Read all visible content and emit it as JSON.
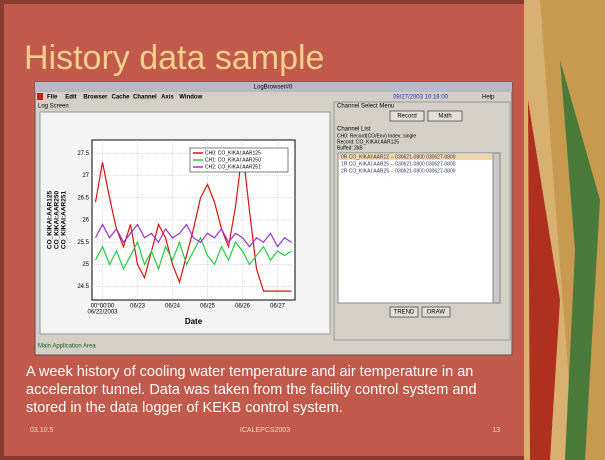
{
  "title": "History data sample",
  "window": {
    "title": "LogBrowser#0",
    "menu": [
      "File",
      "Edit",
      "Browser",
      "Cache",
      "Channel",
      "Axis",
      "Window"
    ],
    "clock": "09/27/2003 10:16:00",
    "help": "Help",
    "left_panel": "Log Screen",
    "status": "Main Application Area"
  },
  "channel_panel": {
    "heading": "Channel Select Menu",
    "buttons": [
      "Record",
      "Math"
    ],
    "list_heading": "Channel List",
    "info": [
      "CH0: Record(CO/Env) Index: single",
      "Record: CO_KIKAI:AAR125",
      "Buffed: 2kB"
    ],
    "list": [
      "0R  CO_KIKAI:AAR12 -- 030621-0800 030627-0800",
      "1R  CO_KIKAI:AAR25 -- 030621-0800 030627-0800",
      "2R  CO_KIKAI:AAR25 -- 030621-0800 030627-0800"
    ],
    "actions": [
      "TREND",
      "DRAW"
    ]
  },
  "chart_data": {
    "type": "line",
    "xlabel": "Date",
    "ylabel": [
      "CO_KIKAI:AAR125",
      "CO_KIKAI:AAR250",
      "CO_KIKAI:AAR251"
    ],
    "x": [
      -0.2,
      0,
      0.2,
      0.4,
      0.6,
      0.8,
      1,
      1.2,
      1.4,
      1.6,
      1.8,
      2,
      2.2,
      2.4,
      2.6,
      2.8,
      3,
      3.2,
      3.4,
      3.6,
      3.8,
      4,
      4.2,
      4.4,
      4.6,
      4.8,
      5,
      5.2,
      5.4
    ],
    "xlim": [
      -0.3,
      5.5
    ],
    "xticks": [
      {
        "value": 0,
        "label": "06/22/2003"
      },
      {
        "value": 1,
        "label": "06/23"
      },
      {
        "value": 2,
        "label": "06/24"
      },
      {
        "value": 3,
        "label": "06/25"
      },
      {
        "value": 4,
        "label": "06/26"
      },
      {
        "value": 5,
        "label": "06/27"
      }
    ],
    "xtick_time": "00°00'00",
    "ylim": [
      24.2,
      27.8
    ],
    "yticks": [
      24.5,
      25,
      25.5,
      26,
      26.5,
      27,
      27.5
    ],
    "grid": true,
    "series": [
      {
        "name": "CH0: CO_KIKAI:AAR125",
        "color": "#e01010",
        "values": [
          26.4,
          27.3,
          26.5,
          25.8,
          25.4,
          25.9,
          25.0,
          24.7,
          25.3,
          25.9,
          25.6,
          25.0,
          24.6,
          25.2,
          25.8,
          26.5,
          26.8,
          26.4,
          25.8,
          25.4,
          26.3,
          27.6,
          26.2,
          24.9,
          24.4,
          24.4,
          24.4,
          24.4,
          24.4
        ]
      },
      {
        "name": "CH1: CO_KIKAI:AAR250",
        "color": "#22cc44",
        "values": [
          25.1,
          25.4,
          25.0,
          25.3,
          24.9,
          25.2,
          25.5,
          25.0,
          25.3,
          24.9,
          25.4,
          25.1,
          25.5,
          25.0,
          25.3,
          25.6,
          25.2,
          25.0,
          25.4,
          25.1,
          25.5,
          25.3,
          25.0,
          25.2,
          25.4,
          25.1,
          25.3,
          25.2,
          25.3
        ]
      },
      {
        "name": "CH2: CO_KIKAI:AAR251",
        "color": "#9933cc",
        "values": [
          25.6,
          25.9,
          25.6,
          25.8,
          25.5,
          25.7,
          25.9,
          25.6,
          25.7,
          25.5,
          25.8,
          25.6,
          25.7,
          25.9,
          25.6,
          25.5,
          25.7,
          25.6,
          25.8,
          25.5,
          25.7,
          25.6,
          25.4,
          25.6,
          25.5,
          25.7,
          25.4,
          25.6,
          25.5
        ]
      }
    ]
  },
  "caption": [
    "A week history of cooling water temperature and air temperature in an",
    "accelerator tunnel. Data was taken from the facility control system and",
    "stored in the data logger of KEKB control system."
  ],
  "footer": {
    "date": "03.10.5",
    "conference": "ICALEPCS2003",
    "page": "13"
  }
}
